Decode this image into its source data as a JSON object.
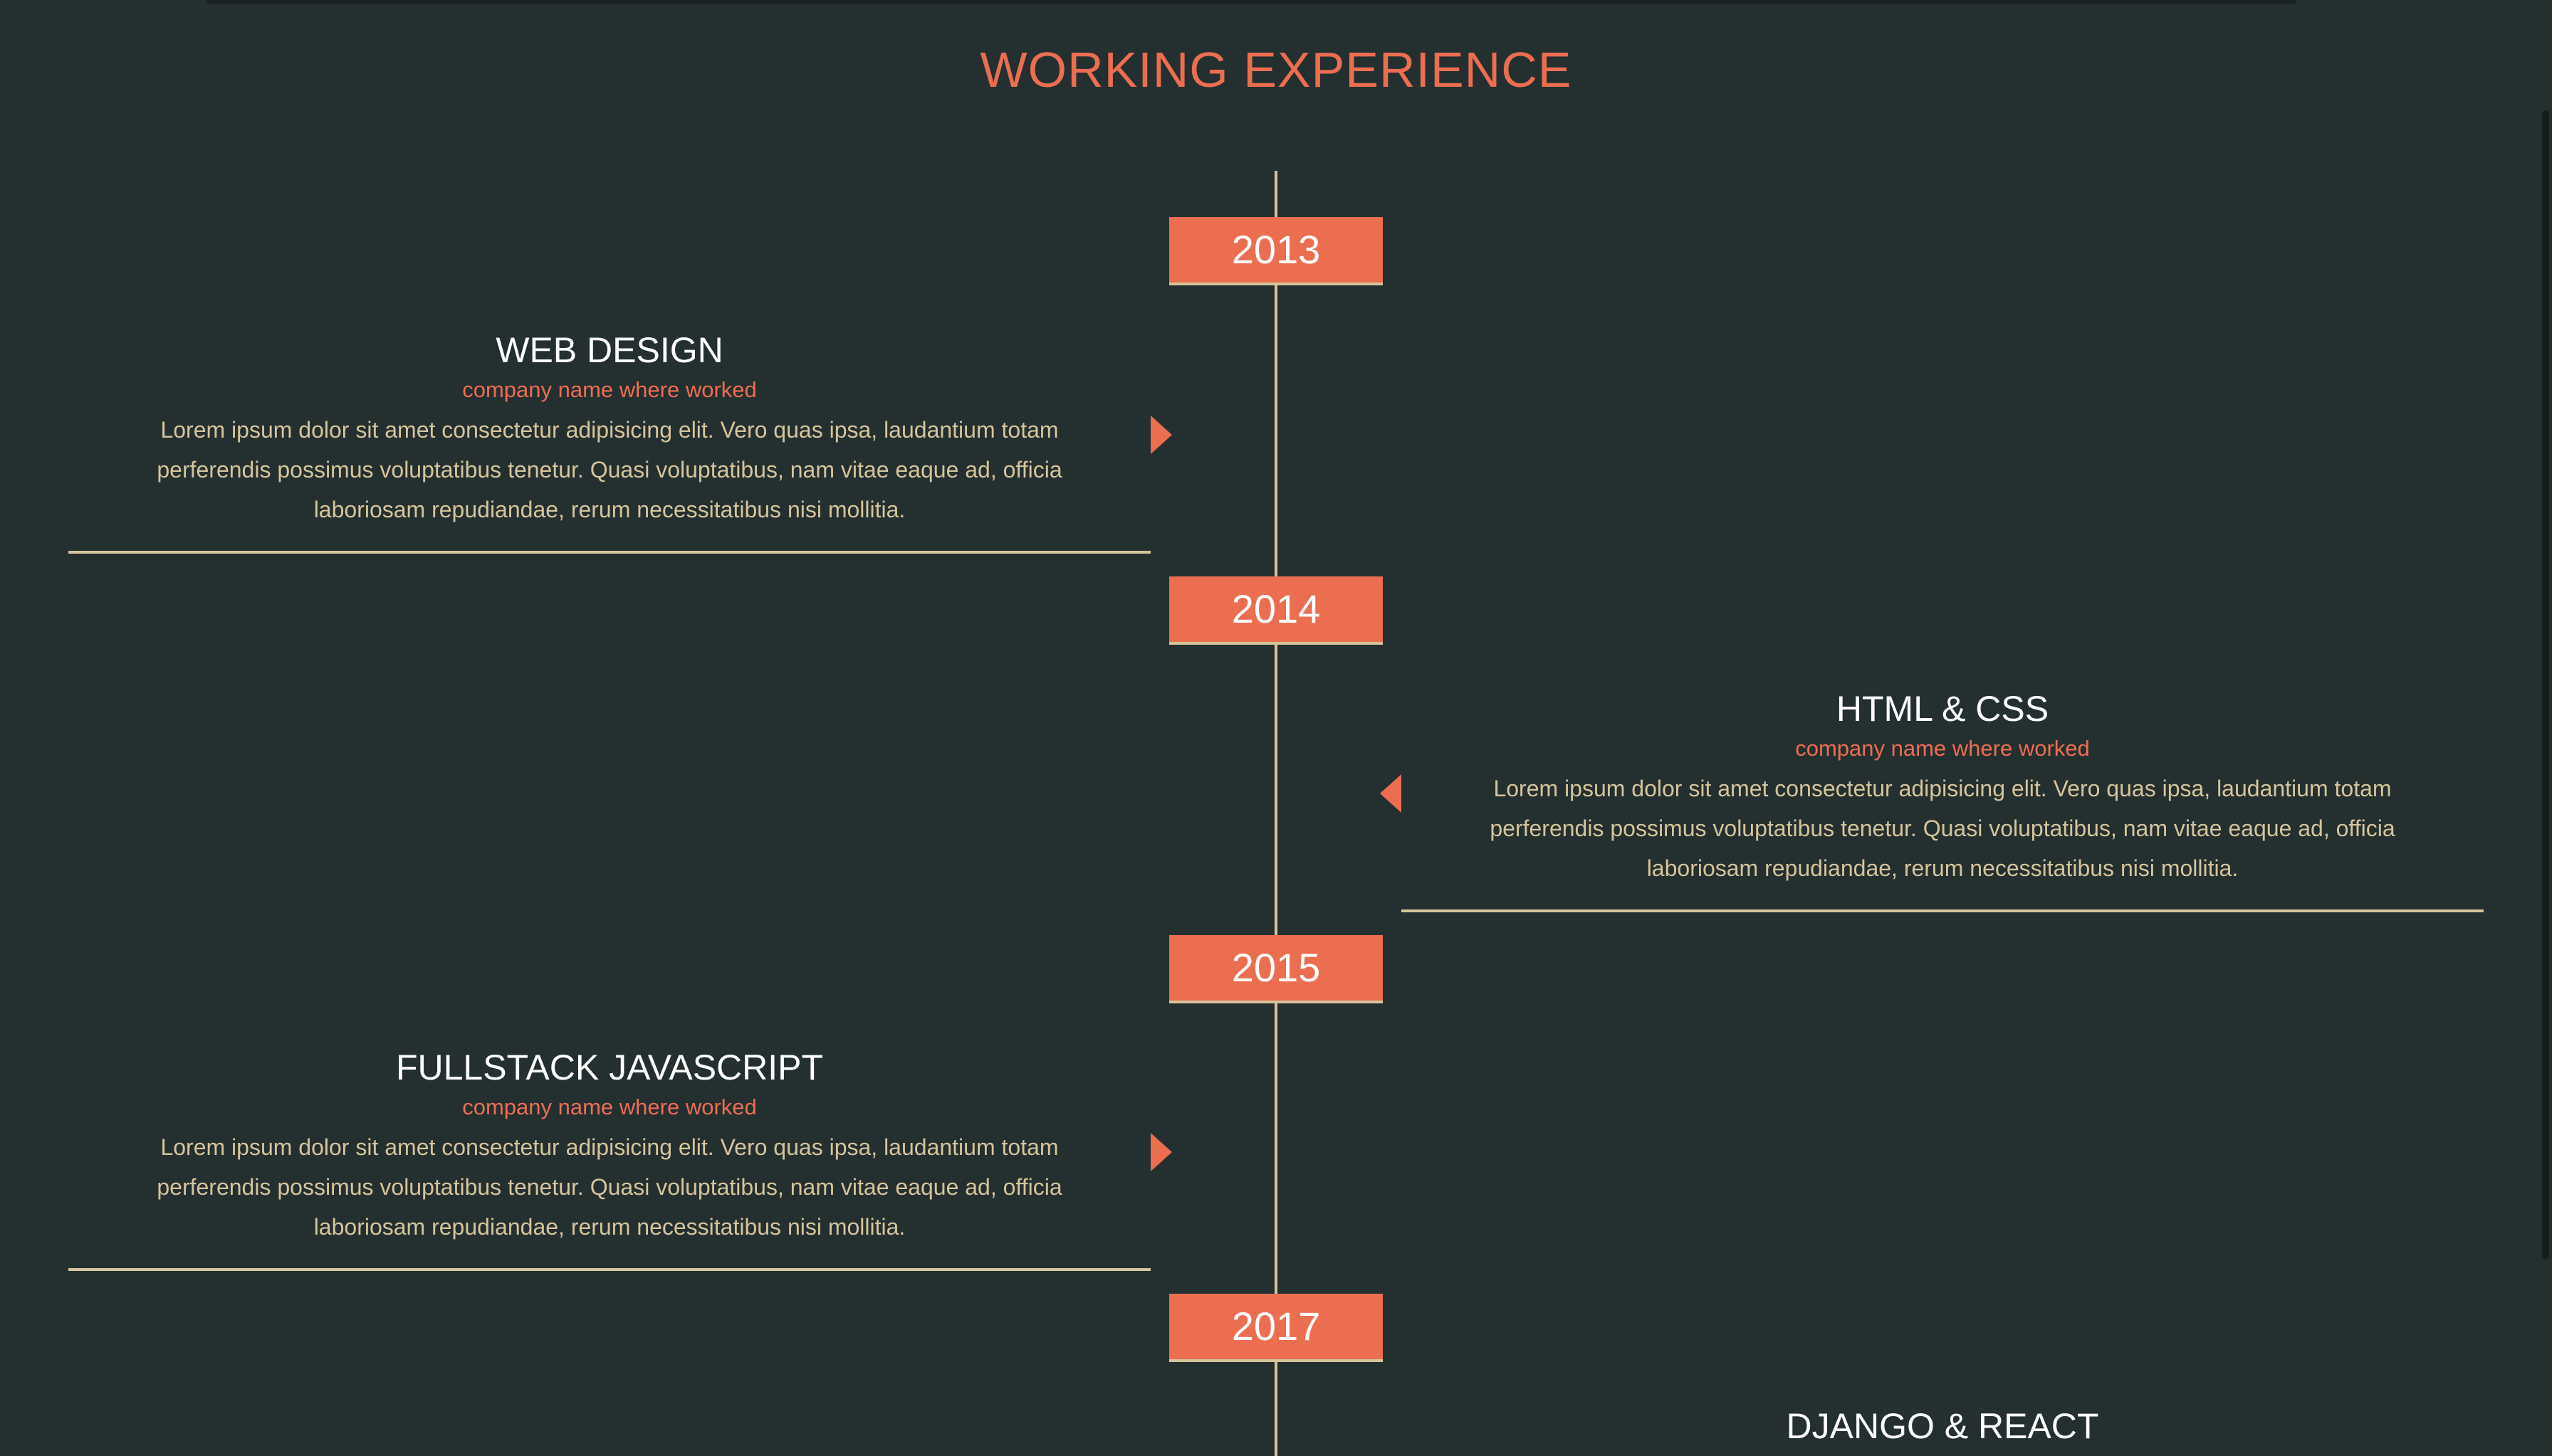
{
  "section": {
    "title": "WORKING EXPERIENCE"
  },
  "timeline": [
    {
      "year": "2013",
      "side": "left",
      "title": "WEB DESIGN",
      "company": "company name where worked",
      "description": "Lorem ipsum dolor sit amet consectetur adipisicing elit. Vero quas ipsa, laudantium totam perferendis possimus voluptatibus tenetur. Quasi voluptatibus, nam vitae eaque ad, officia laboriosam repudiandae, rerum necessitatibus nisi mollitia."
    },
    {
      "year": "2014",
      "side": "right",
      "title": "HTML & CSS",
      "company": "company name where worked",
      "description": "Lorem ipsum dolor sit amet consectetur adipisicing elit. Vero quas ipsa, laudantium totam perferendis possimus voluptatibus tenetur. Quasi voluptatibus, nam vitae eaque ad, officia laboriosam repudiandae, rerum necessitatibus nisi mollitia."
    },
    {
      "year": "2015",
      "side": "left",
      "title": "FULLSTACK JAVASCRIPT",
      "company": "company name where worked",
      "description": "Lorem ipsum dolor sit amet consectetur adipisicing elit. Vero quas ipsa, laudantium totam perferendis possimus voluptatibus tenetur. Quasi voluptatibus, nam vitae eaque ad, officia laboriosam repudiandae, rerum necessitatibus nisi mollitia."
    },
    {
      "year": "2017",
      "side": "right",
      "title": "DJANGO & REACT"
    }
  ],
  "colors": {
    "background": "#242f30",
    "accent": "#ec6e51",
    "line": "#d6c49b",
    "heading": "#ffffff"
  }
}
